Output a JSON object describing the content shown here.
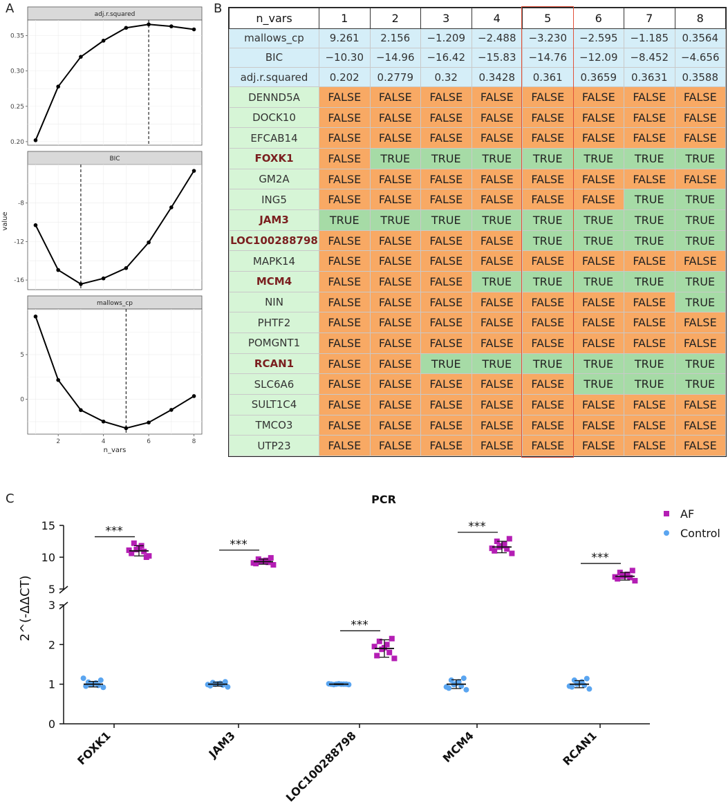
{
  "panel_labels": {
    "a": "A",
    "b": "B",
    "c": "C"
  },
  "chart_data": [
    {
      "type": "line",
      "panel": "A",
      "ylabel": "value",
      "xlabel": "n_vars",
      "x": [
        1,
        2,
        3,
        4,
        5,
        6,
        7,
        8
      ],
      "facets": [
        {
          "title": "adj.r.squared",
          "values": [
            0.202,
            0.2779,
            0.32,
            0.3428,
            0.361,
            0.3659,
            0.3631,
            0.3588
          ],
          "ylim": [
            0.195,
            0.372
          ],
          "yticks": [
            0.2,
            0.25,
            0.3,
            0.35
          ],
          "ytick_labels": [
            "0.20",
            "0.25",
            "0.30",
            "0.35"
          ],
          "best_x": 6
        },
        {
          "title": "BIC",
          "values": [
            -10.3,
            -14.96,
            -16.42,
            -15.83,
            -14.76,
            -12.09,
            -8.452,
            -4.656
          ],
          "ylim": [
            -17.0,
            -4.0
          ],
          "yticks": [
            -16,
            -12,
            -8
          ],
          "ytick_labels": [
            "-16",
            "-12",
            "-8"
          ],
          "best_x": 3
        },
        {
          "title": "mallows_cp",
          "values": [
            9.261,
            2.156,
            -1.209,
            -2.488,
            -3.23,
            -2.595,
            -1.185,
            0.3564
          ],
          "ylim": [
            -3.9,
            10.1
          ],
          "yticks": [
            0,
            5
          ],
          "ytick_labels": [
            "0",
            "5"
          ],
          "best_x": 5
        }
      ],
      "xticks": [
        2,
        4,
        6,
        8
      ],
      "xtick_labels": [
        "2",
        "4",
        "6",
        "8"
      ]
    },
    {
      "type": "table",
      "panel": "B",
      "header": [
        "n_vars",
        "1",
        "2",
        "3",
        "4",
        "5",
        "6",
        "7",
        "8"
      ],
      "highlight_column": "5",
      "stats": [
        {
          "name": "mallows_cp",
          "values": [
            "9.261",
            "2.156",
            "−1.209",
            "−2.488",
            "−3.230",
            "−2.595",
            "−1.185",
            "0.3564"
          ]
        },
        {
          "name": "BIC",
          "values": [
            "−10.30",
            "−14.96",
            "−16.42",
            "−15.83",
            "−14.76",
            "−12.09",
            "−8.452",
            "−4.656"
          ]
        },
        {
          "name": "adj.r.squared",
          "values": [
            "0.202",
            "0.2779",
            "0.32",
            "0.3428",
            "0.361",
            "0.3659",
            "0.3631",
            "0.3588"
          ]
        }
      ],
      "genes": [
        {
          "name": "DENND5A",
          "hl": false,
          "values": [
            "FALSE",
            "FALSE",
            "FALSE",
            "FALSE",
            "FALSE",
            "FALSE",
            "FALSE",
            "FALSE"
          ]
        },
        {
          "name": "DOCK10",
          "hl": false,
          "values": [
            "FALSE",
            "FALSE",
            "FALSE",
            "FALSE",
            "FALSE",
            "FALSE",
            "FALSE",
            "FALSE"
          ]
        },
        {
          "name": "EFCAB14",
          "hl": false,
          "values": [
            "FALSE",
            "FALSE",
            "FALSE",
            "FALSE",
            "FALSE",
            "FALSE",
            "FALSE",
            "FALSE"
          ]
        },
        {
          "name": "FOXK1",
          "hl": true,
          "values": [
            "FALSE",
            "TRUE",
            "TRUE",
            "TRUE",
            "TRUE",
            "TRUE",
            "TRUE",
            "TRUE"
          ]
        },
        {
          "name": "GM2A",
          "hl": false,
          "values": [
            "FALSE",
            "FALSE",
            "FALSE",
            "FALSE",
            "FALSE",
            "FALSE",
            "FALSE",
            "FALSE"
          ]
        },
        {
          "name": "ING5",
          "hl": false,
          "values": [
            "FALSE",
            "FALSE",
            "FALSE",
            "FALSE",
            "FALSE",
            "FALSE",
            "TRUE",
            "TRUE"
          ]
        },
        {
          "name": "JAM3",
          "hl": true,
          "values": [
            "TRUE",
            "TRUE",
            "TRUE",
            "TRUE",
            "TRUE",
            "TRUE",
            "TRUE",
            "TRUE"
          ]
        },
        {
          "name": "LOC100288798",
          "hl": true,
          "values": [
            "FALSE",
            "FALSE",
            "FALSE",
            "FALSE",
            "TRUE",
            "TRUE",
            "TRUE",
            "TRUE"
          ]
        },
        {
          "name": "MAPK14",
          "hl": false,
          "values": [
            "FALSE",
            "FALSE",
            "FALSE",
            "FALSE",
            "FALSE",
            "FALSE",
            "FALSE",
            "FALSE"
          ]
        },
        {
          "name": "MCM4",
          "hl": true,
          "values": [
            "FALSE",
            "FALSE",
            "FALSE",
            "TRUE",
            "TRUE",
            "TRUE",
            "TRUE",
            "TRUE"
          ]
        },
        {
          "name": "NIN",
          "hl": false,
          "values": [
            "FALSE",
            "FALSE",
            "FALSE",
            "FALSE",
            "FALSE",
            "FALSE",
            "FALSE",
            "TRUE"
          ]
        },
        {
          "name": "PHTF2",
          "hl": false,
          "values": [
            "FALSE",
            "FALSE",
            "FALSE",
            "FALSE",
            "FALSE",
            "FALSE",
            "FALSE",
            "FALSE"
          ]
        },
        {
          "name": "POMGNT1",
          "hl": false,
          "values": [
            "FALSE",
            "FALSE",
            "FALSE",
            "FALSE",
            "FALSE",
            "FALSE",
            "FALSE",
            "FALSE"
          ]
        },
        {
          "name": "RCAN1",
          "hl": true,
          "values": [
            "FALSE",
            "FALSE",
            "TRUE",
            "TRUE",
            "TRUE",
            "TRUE",
            "TRUE",
            "TRUE"
          ]
        },
        {
          "name": "SLC6A6",
          "hl": false,
          "values": [
            "FALSE",
            "FALSE",
            "FALSE",
            "FALSE",
            "FALSE",
            "TRUE",
            "TRUE",
            "TRUE"
          ]
        },
        {
          "name": "SULT1C4",
          "hl": false,
          "values": [
            "FALSE",
            "FALSE",
            "FALSE",
            "FALSE",
            "FALSE",
            "FALSE",
            "FALSE",
            "FALSE"
          ]
        },
        {
          "name": "TMCO3",
          "hl": false,
          "values": [
            "FALSE",
            "FALSE",
            "FALSE",
            "FALSE",
            "FALSE",
            "FALSE",
            "FALSE",
            "FALSE"
          ]
        },
        {
          "name": "UTP23",
          "hl": false,
          "values": [
            "FALSE",
            "FALSE",
            "FALSE",
            "FALSE",
            "FALSE",
            "FALSE",
            "FALSE",
            "FALSE"
          ]
        }
      ]
    },
    {
      "type": "scatter",
      "panel": "C",
      "title": "PCR",
      "ylabel": "2^(-ΔΔCT)",
      "categories": [
        "FOXK1",
        "JAM3",
        "LOC100288798",
        "MCM4",
        "RCAN1"
      ],
      "axis_break": {
        "lower_range": [
          0,
          3
        ],
        "upper_range": [
          5,
          15
        ]
      },
      "yticks_lower": [
        0,
        1,
        2,
        3
      ],
      "yticks_upper": [
        5,
        10,
        15
      ],
      "legend": [
        "AF",
        "Control"
      ],
      "colors": {
        "AF": "#b41eb4",
        "Control": "#5aa5f0"
      },
      "significance": "***",
      "series": [
        {
          "name": "AF",
          "mean": [
            11.0,
            9.3,
            1.9,
            11.6,
            7.0
          ],
          "sd": [
            0.8,
            0.4,
            0.22,
            0.9,
            0.6
          ],
          "points": [
            [
              10.2,
              10.6,
              10.9,
              11.2,
              11.5,
              11.8,
              12.2,
              10.0,
              11.1
            ],
            [
              8.8,
              9.0,
              9.2,
              9.3,
              9.4,
              9.5,
              9.7,
              9.9,
              9.1
            ],
            [
              1.65,
              1.72,
              1.8,
              1.88,
              1.92,
              2.0,
              2.08,
              2.15,
              1.95
            ],
            [
              10.6,
              11.0,
              11.3,
              11.6,
              11.8,
              12.1,
              12.5,
              12.9,
              11.4
            ],
            [
              6.3,
              6.6,
              6.8,
              7.0,
              7.1,
              7.3,
              7.6,
              7.9,
              6.9
            ]
          ]
        },
        {
          "name": "Control",
          "mean": [
            1.0,
            1.0,
            1.0,
            1.0,
            1.0
          ],
          "sd": [
            0.07,
            0.05,
            0.01,
            0.11,
            0.09
          ],
          "points": [
            [
              0.92,
              0.95,
              0.97,
              0.99,
              1.01,
              1.03,
              1.05,
              1.1,
              1.15
            ],
            [
              0.93,
              0.96,
              0.98,
              1.0,
              1.01,
              1.02,
              1.04,
              1.06,
              0.99
            ],
            [
              0.99,
              1.0,
              1.0,
              1.0,
              1.01,
              1.0,
              0.99,
              1.0,
              1.01
            ],
            [
              0.86,
              0.9,
              0.95,
              0.99,
              1.02,
              1.06,
              1.1,
              1.15,
              0.93
            ],
            [
              0.88,
              0.93,
              0.97,
              1.0,
              1.03,
              1.06,
              1.1,
              1.14,
              0.95
            ]
          ]
        }
      ]
    }
  ]
}
